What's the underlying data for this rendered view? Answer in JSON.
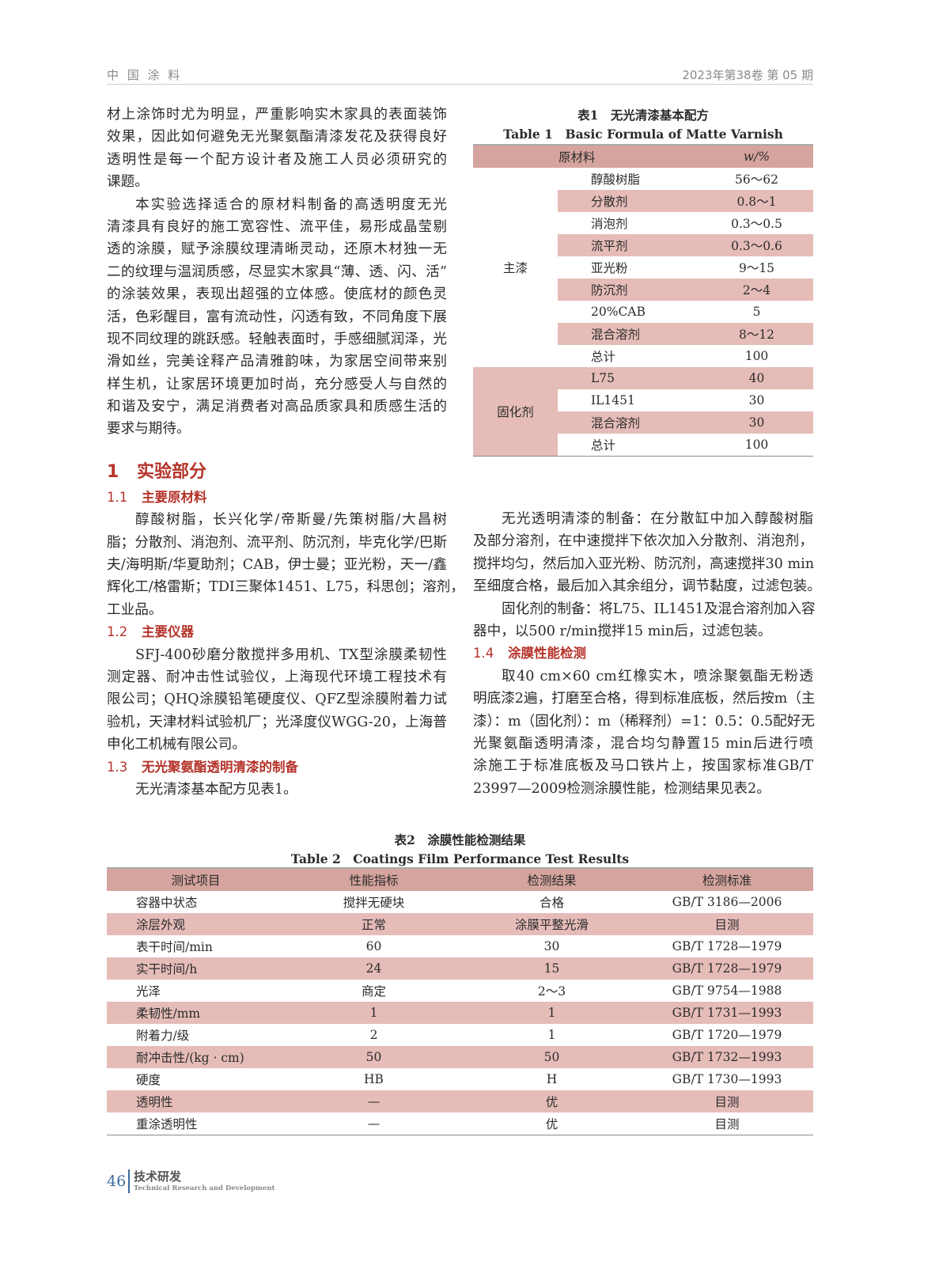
{
  "header": {
    "journal": "中 国 涂 料",
    "issue": "2023年第38卷   第 05 期"
  },
  "left": {
    "p1": [
      "材上涂饰时尤为明显，严重影响实木家具的表面装饰",
      "效果，因此如何避免无光聚氨酯清漆发花及获得良好",
      "透明性是每一个配方设计者及施工人员必须研究的",
      "课题。"
    ],
    "p2": [
      "本实验选择适合的原材料制备的高透明度无光",
      "清漆具有良好的施工宽容性、流平佳，易形成晶莹剔",
      "透的涂膜，赋予涂膜纹理清晰灵动，还原木材独一无",
      "二的纹理与温润质感，尽显实木家具“薄、透、闪、活”",
      "的涂装效果，表现出超强的立体感。使底材的颜色灵",
      "活，色彩醒目，富有流动性，闪透有致，不同角度下展",
      "现不同纹理的跳跃感。轻触表面时，手感细腻润泽，光",
      "滑如丝，完美诠释产品清雅韵味，为家居空间带来别",
      "样生机，让家居环境更加时尚，充分感受人与自然的",
      "和谐及安宁，满足消费者对高品质家具和质感生活的",
      "要求与期待。"
    ],
    "s1": {
      "num": "1",
      "title": "实验部分"
    },
    "s11": {
      "num": "1.1",
      "title": "主要原材料"
    },
    "p3": [
      "醇酸树脂，长兴化学/帝斯曼/先策树脂/大昌树",
      "脂；分散剂、消泡剂、流平剂、防沉剂，毕克化学/巴斯",
      "夫/海明斯/华夏助剂；CAB，伊士曼；亚光粉，天一/鑫",
      "辉化工/格雷斯；TDI三聚体1451、L75，科思创；溶剂，",
      "工业品。"
    ],
    "s12": {
      "num": "1.2",
      "title": "主要仪器"
    },
    "p4": [
      "SFJ-400砂磨分散搅拌多用机、TX型涂膜柔韧性",
      "测定器、耐冲击性试验仪，上海现代环境工程技术有",
      "限公司；QHQ涂膜铅笔硬度仪、QFZ型涂膜附着力试",
      "验机，天津材料试验机厂；光泽度仪WGG-20，上海普",
      "申化工机械有限公司。"
    ],
    "s13": {
      "num": "1.3",
      "title": "无光聚氨酯透明清漆的制备"
    },
    "p5": [
      "无光清漆基本配方见表1。"
    ]
  },
  "right": {
    "p1": [
      "无光透明清漆的制备：在分散缸中加入醇酸树脂",
      "及部分溶剂，在中速搅拌下依次加入分散剂、消泡剂，",
      "搅拌均匀，然后加入亚光粉、防沉剂，高速搅拌30 min",
      "至细度合格，最后加入其余组分，调节黏度，过滤包装。"
    ],
    "p2": [
      "固化剂的制备：将L75、IL1451及混合溶剂加入容",
      "器中，以500 r/min搅拌15 min后，过滤包装。"
    ],
    "s14": {
      "num": "1.4",
      "title": "涂膜性能检测"
    },
    "p3": [
      "取40 cm×60 cm红橡实木，喷涂聚氨酯无粉透",
      "明底漆2遍，打磨至合格，得到标准底板，然后按m（主",
      "漆）：m（固化剂）：m（稀释剂）=1：0.5：0.5配好无",
      "光聚氨酯透明清漆，混合均匀静置15 min后进行喷",
      "涂施工于标准底板及马口铁片上，按国家标准GB/T",
      "23997—2009检测涂膜性能，检测结果见表2。"
    ]
  },
  "table1": {
    "caption_cn": "表1　无光清漆基本配方",
    "caption_en": "Table 1　Basic Formula of Matte Varnish",
    "headers": [
      "原材料",
      "w/%"
    ],
    "groups": [
      {
        "name": "主漆",
        "rows": [
          [
            "醇酸树脂",
            "56～62"
          ],
          [
            "分散剂",
            "0.8～1"
          ],
          [
            "消泡剂",
            "0.3～0.5"
          ],
          [
            "流平剂",
            "0.3～0.6"
          ],
          [
            "亚光粉",
            "9～15"
          ],
          [
            "防沉剂",
            "2～4"
          ],
          [
            "20%CAB",
            "5"
          ],
          [
            "混合溶剂",
            "8～12"
          ],
          [
            "总计",
            "100"
          ]
        ]
      },
      {
        "name": "固化剂",
        "rows": [
          [
            "L75",
            "40"
          ],
          [
            "IL1451",
            "30"
          ],
          [
            "混合溶剂",
            "30"
          ],
          [
            "总计",
            "100"
          ]
        ]
      }
    ]
  },
  "table2": {
    "caption_cn": "表2　涂膜性能检测结果",
    "caption_en": "Table 2　Coatings Film Performance Test Results",
    "headers": [
      "测试项目",
      "性能指标",
      "检测结果",
      "检测标准"
    ],
    "rows": [
      [
        "容器中状态",
        "搅拌无硬块",
        "合格",
        "GB/T 3186—2006"
      ],
      [
        "涂层外观",
        "正常",
        "涂膜平整光滑",
        "目测"
      ],
      [
        "表干时间/min",
        "60",
        "30",
        "GB/T 1728—1979"
      ],
      [
        "实干时间/h",
        "24",
        "15",
        "GB/T 1728—1979"
      ],
      [
        "光泽",
        "商定",
        "2～3",
        "GB/T 9754—1988"
      ],
      [
        "柔韧性/mm",
        "1",
        "1",
        "GB/T 1731—1993"
      ],
      [
        "附着力/级",
        "2",
        "1",
        "GB/T 1720—1979"
      ],
      [
        "耐冲击性/(kg · cm)",
        "50",
        "50",
        "GB/T 1732—1993"
      ],
      [
        "硬度",
        "HB",
        "H",
        "GB/T 1730—1993"
      ],
      [
        "透明性",
        "—",
        "优",
        "目测"
      ],
      [
        "重涂透明性",
        "—",
        "优",
        "目测"
      ]
    ]
  },
  "footer": {
    "page": "46",
    "section_cn": "技术研发",
    "section_en": "Technical Research and Development"
  },
  "colors": {
    "heading": "#b5332a",
    "table_header": "#d5a49e",
    "table_stripe": "#e5bcb8",
    "footer_accent": "#3d6b9a"
  }
}
